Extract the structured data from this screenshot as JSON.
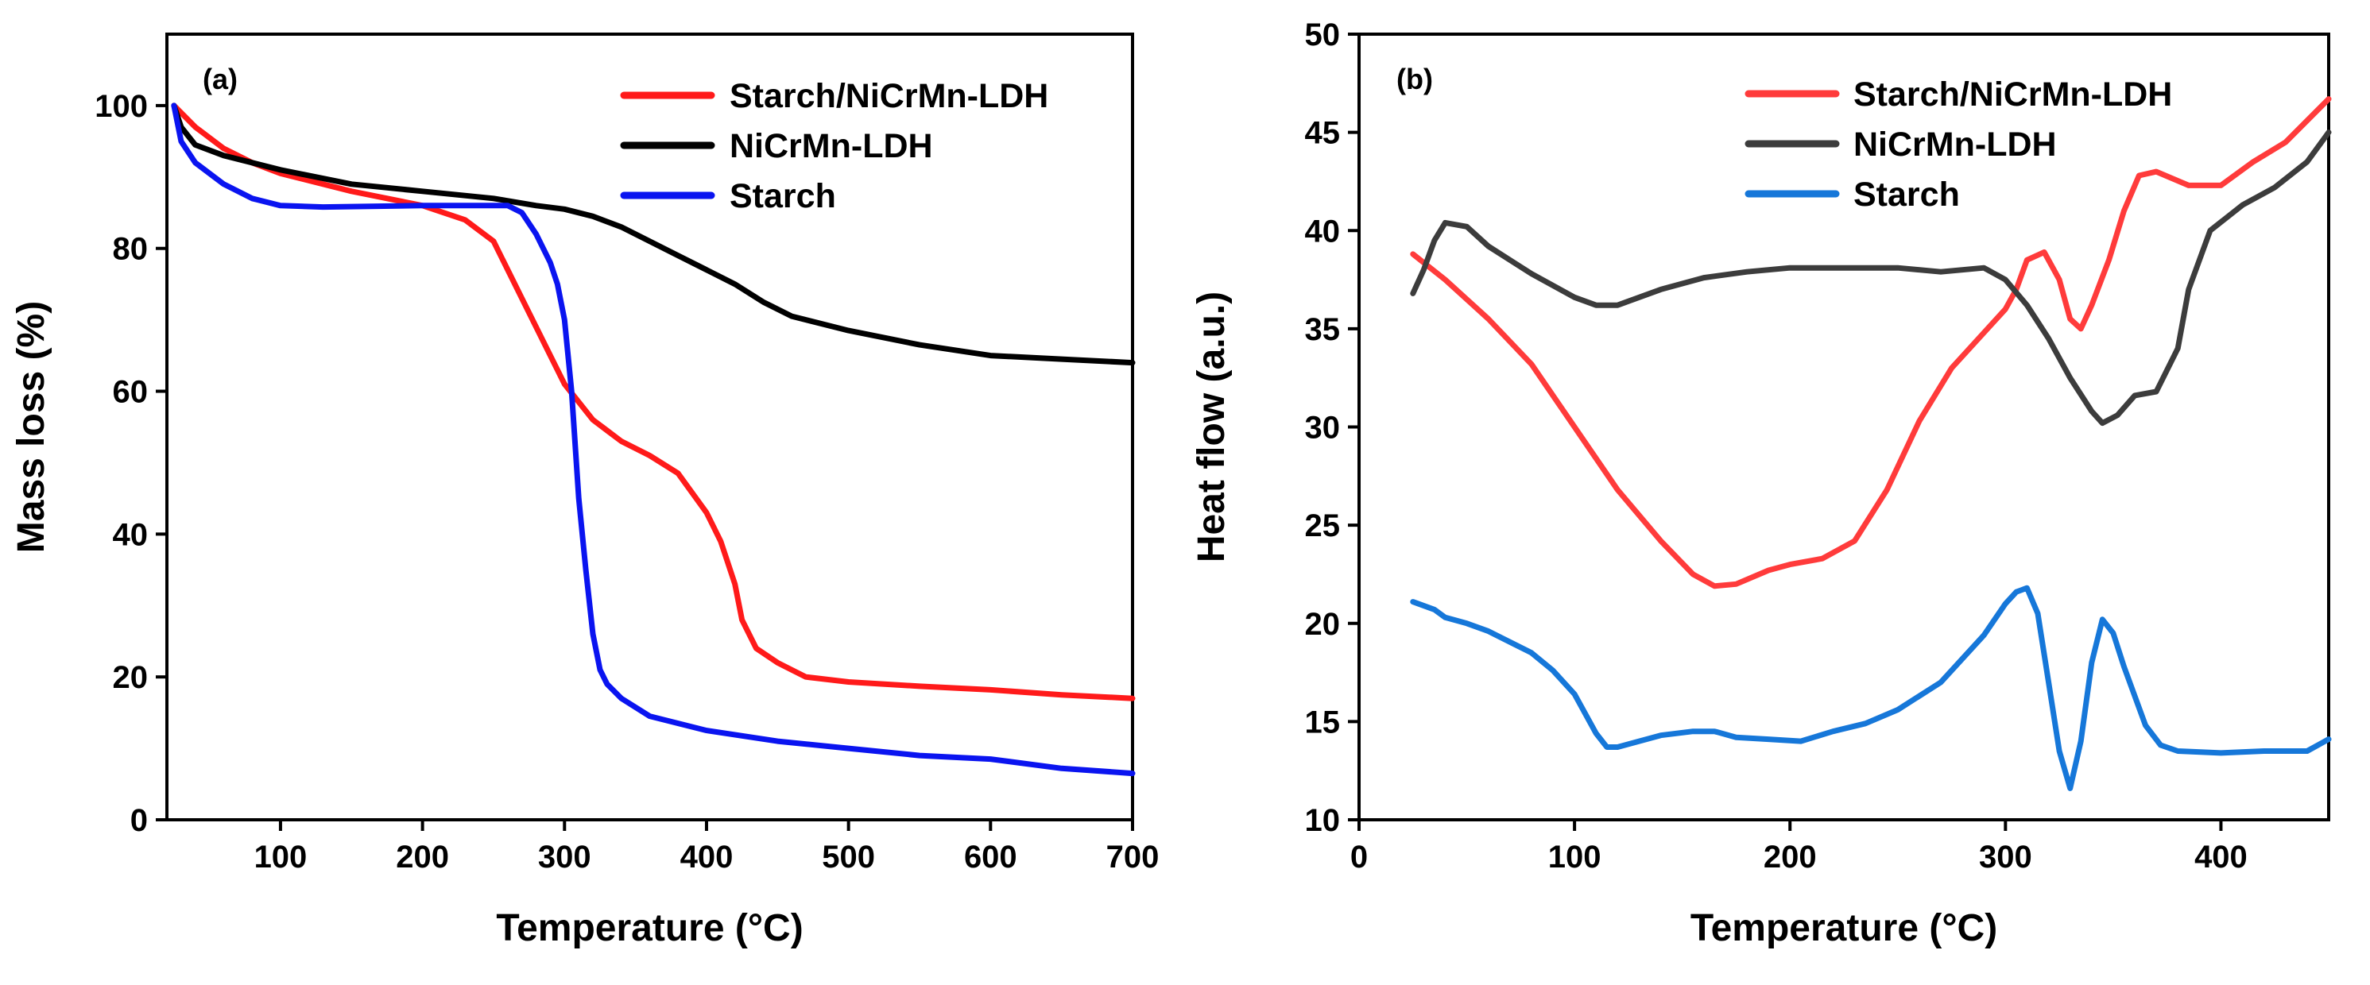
{
  "chart_data": [
    {
      "panel_label": "(a)",
      "type": "line",
      "title": "",
      "xlabel": "Temperature (°C)",
      "ylabel": "Mass loss (%)",
      "xlim": [
        20,
        700
      ],
      "ylim": [
        0,
        110
      ],
      "xticks": [
        100,
        200,
        300,
        400,
        500,
        600,
        700
      ],
      "yticks": [
        0,
        20,
        40,
        60,
        80,
        100
      ],
      "legend_position": "top-right",
      "series": [
        {
          "name": "Starch/NiCrMn-LDH",
          "color": "#ff1a1a",
          "points": [
            [
              25,
              100
            ],
            [
              40,
              97
            ],
            [
              60,
              94
            ],
            [
              80,
              92
            ],
            [
              100,
              90.5
            ],
            [
              150,
              88
            ],
            [
              200,
              86
            ],
            [
              230,
              84
            ],
            [
              250,
              81
            ],
            [
              270,
              73
            ],
            [
              290,
              65
            ],
            [
              300,
              61
            ],
            [
              320,
              56
            ],
            [
              340,
              53
            ],
            [
              360,
              51
            ],
            [
              380,
              48.5
            ],
            [
              400,
              43
            ],
            [
              410,
              39
            ],
            [
              420,
              33
            ],
            [
              425,
              28
            ],
            [
              435,
              24
            ],
            [
              450,
              22
            ],
            [
              470,
              20
            ],
            [
              500,
              19.3
            ],
            [
              550,
              18.7
            ],
            [
              600,
              18.2
            ],
            [
              650,
              17.5
            ],
            [
              700,
              17
            ]
          ]
        },
        {
          "name": "NiCrMn-LDH",
          "color": "#000000",
          "points": [
            [
              25,
              100
            ],
            [
              30,
              97
            ],
            [
              40,
              94.5
            ],
            [
              60,
              93
            ],
            [
              80,
              92
            ],
            [
              100,
              91
            ],
            [
              150,
              89
            ],
            [
              200,
              88
            ],
            [
              250,
              87
            ],
            [
              280,
              86
            ],
            [
              300,
              85.5
            ],
            [
              320,
              84.5
            ],
            [
              340,
              83
            ],
            [
              360,
              81
            ],
            [
              380,
              79
            ],
            [
              400,
              77
            ],
            [
              420,
              75
            ],
            [
              440,
              72.5
            ],
            [
              460,
              70.5
            ],
            [
              500,
              68.5
            ],
            [
              550,
              66.5
            ],
            [
              600,
              65
            ],
            [
              650,
              64.5
            ],
            [
              700,
              64
            ]
          ]
        },
        {
          "name": "Starch",
          "color": "#0a14f0",
          "points": [
            [
              25,
              100
            ],
            [
              30,
              95
            ],
            [
              40,
              92
            ],
            [
              60,
              89
            ],
            [
              80,
              87
            ],
            [
              100,
              86
            ],
            [
              130,
              85.8
            ],
            [
              200,
              86
            ],
            [
              260,
              86
            ],
            [
              270,
              85
            ],
            [
              280,
              82
            ],
            [
              290,
              78
            ],
            [
              295,
              75
            ],
            [
              300,
              70
            ],
            [
              305,
              60
            ],
            [
              310,
              45
            ],
            [
              315,
              35
            ],
            [
              320,
              26
            ],
            [
              325,
              21
            ],
            [
              330,
              19
            ],
            [
              340,
              17
            ],
            [
              360,
              14.5
            ],
            [
              400,
              12.5
            ],
            [
              450,
              11
            ],
            [
              500,
              10
            ],
            [
              550,
              9
            ],
            [
              600,
              8.5
            ],
            [
              650,
              7.2
            ],
            [
              700,
              6.5
            ]
          ]
        }
      ]
    },
    {
      "panel_label": "(b)",
      "type": "line",
      "title": "",
      "xlabel": "Temperature (°C)",
      "ylabel": "Heat flow (a.u.)",
      "xlim": [
        0,
        450
      ],
      "ylim": [
        10,
        50
      ],
      "xticks": [
        0,
        100,
        200,
        300,
        400
      ],
      "yticks": [
        10,
        15,
        20,
        25,
        30,
        35,
        40,
        45,
        50
      ],
      "legend_position": "top-right",
      "series": [
        {
          "name": "Starch/NiCrMn-LDH",
          "color": "#ff3b3b",
          "points": [
            [
              25,
              38.8
            ],
            [
              40,
              37.5
            ],
            [
              60,
              35.5
            ],
            [
              80,
              33.2
            ],
            [
              100,
              30
            ],
            [
              120,
              26.8
            ],
            [
              140,
              24.2
            ],
            [
              155,
              22.5
            ],
            [
              165,
              21.9
            ],
            [
              175,
              22
            ],
            [
              190,
              22.7
            ],
            [
              200,
              23
            ],
            [
              215,
              23.3
            ],
            [
              230,
              24.2
            ],
            [
              245,
              26.8
            ],
            [
              260,
              30.3
            ],
            [
              275,
              33
            ],
            [
              290,
              34.8
            ],
            [
              300,
              36
            ],
            [
              305,
              37
            ],
            [
              310,
              38.5
            ],
            [
              318,
              38.9
            ],
            [
              325,
              37.5
            ],
            [
              330,
              35.5
            ],
            [
              335,
              35
            ],
            [
              340,
              36.2
            ],
            [
              348,
              38.5
            ],
            [
              355,
              41
            ],
            [
              362,
              42.8
            ],
            [
              370,
              43
            ],
            [
              385,
              42.3
            ],
            [
              400,
              42.3
            ],
            [
              415,
              43.5
            ],
            [
              430,
              44.5
            ],
            [
              450,
              46.7
            ]
          ]
        },
        {
          "name": "NiCrMn-LDH",
          "color": "#3c3c3c",
          "points": [
            [
              25,
              36.8
            ],
            [
              30,
              38
            ],
            [
              35,
              39.5
            ],
            [
              40,
              40.4
            ],
            [
              50,
              40.2
            ],
            [
              60,
              39.2
            ],
            [
              80,
              37.8
            ],
            [
              100,
              36.6
            ],
            [
              110,
              36.2
            ],
            [
              120,
              36.2
            ],
            [
              140,
              37
            ],
            [
              160,
              37.6
            ],
            [
              180,
              37.9
            ],
            [
              200,
              38.1
            ],
            [
              250,
              38.1
            ],
            [
              270,
              37.9
            ],
            [
              290,
              38.1
            ],
            [
              300,
              37.5
            ],
            [
              310,
              36.2
            ],
            [
              320,
              34.5
            ],
            [
              330,
              32.5
            ],
            [
              340,
              30.8
            ],
            [
              345,
              30.2
            ],
            [
              352,
              30.6
            ],
            [
              360,
              31.6
            ],
            [
              370,
              31.8
            ],
            [
              380,
              34
            ],
            [
              385,
              37
            ],
            [
              395,
              40
            ],
            [
              410,
              41.3
            ],
            [
              425,
              42.2
            ],
            [
              440,
              43.5
            ],
            [
              450,
              45
            ]
          ]
        },
        {
          "name": "Starch",
          "color": "#1677d9",
          "points": [
            [
              25,
              21.1
            ],
            [
              35,
              20.7
            ],
            [
              40,
              20.3
            ],
            [
              50,
              20
            ],
            [
              60,
              19.6
            ],
            [
              80,
              18.5
            ],
            [
              90,
              17.6
            ],
            [
              100,
              16.4
            ],
            [
              110,
              14.4
            ],
            [
              115,
              13.7
            ],
            [
              120,
              13.7
            ],
            [
              130,
              14
            ],
            [
              140,
              14.3
            ],
            [
              155,
              14.5
            ],
            [
              165,
              14.5
            ],
            [
              175,
              14.2
            ],
            [
              190,
              14.1
            ],
            [
              205,
              14
            ],
            [
              220,
              14.5
            ],
            [
              235,
              14.9
            ],
            [
              250,
              15.6
            ],
            [
              270,
              17
            ],
            [
              290,
              19.4
            ],
            [
              300,
              21
            ],
            [
              305,
              21.6
            ],
            [
              310,
              21.8
            ],
            [
              315,
              20.5
            ],
            [
              320,
              17
            ],
            [
              325,
              13.5
            ],
            [
              330,
              11.6
            ],
            [
              335,
              14
            ],
            [
              340,
              18
            ],
            [
              345,
              20.2
            ],
            [
              350,
              19.5
            ],
            [
              355,
              17.8
            ],
            [
              365,
              14.8
            ],
            [
              372,
              13.8
            ],
            [
              380,
              13.5
            ],
            [
              400,
              13.4
            ],
            [
              420,
              13.5
            ],
            [
              440,
              13.5
            ],
            [
              450,
              14.1
            ]
          ]
        }
      ]
    }
  ]
}
